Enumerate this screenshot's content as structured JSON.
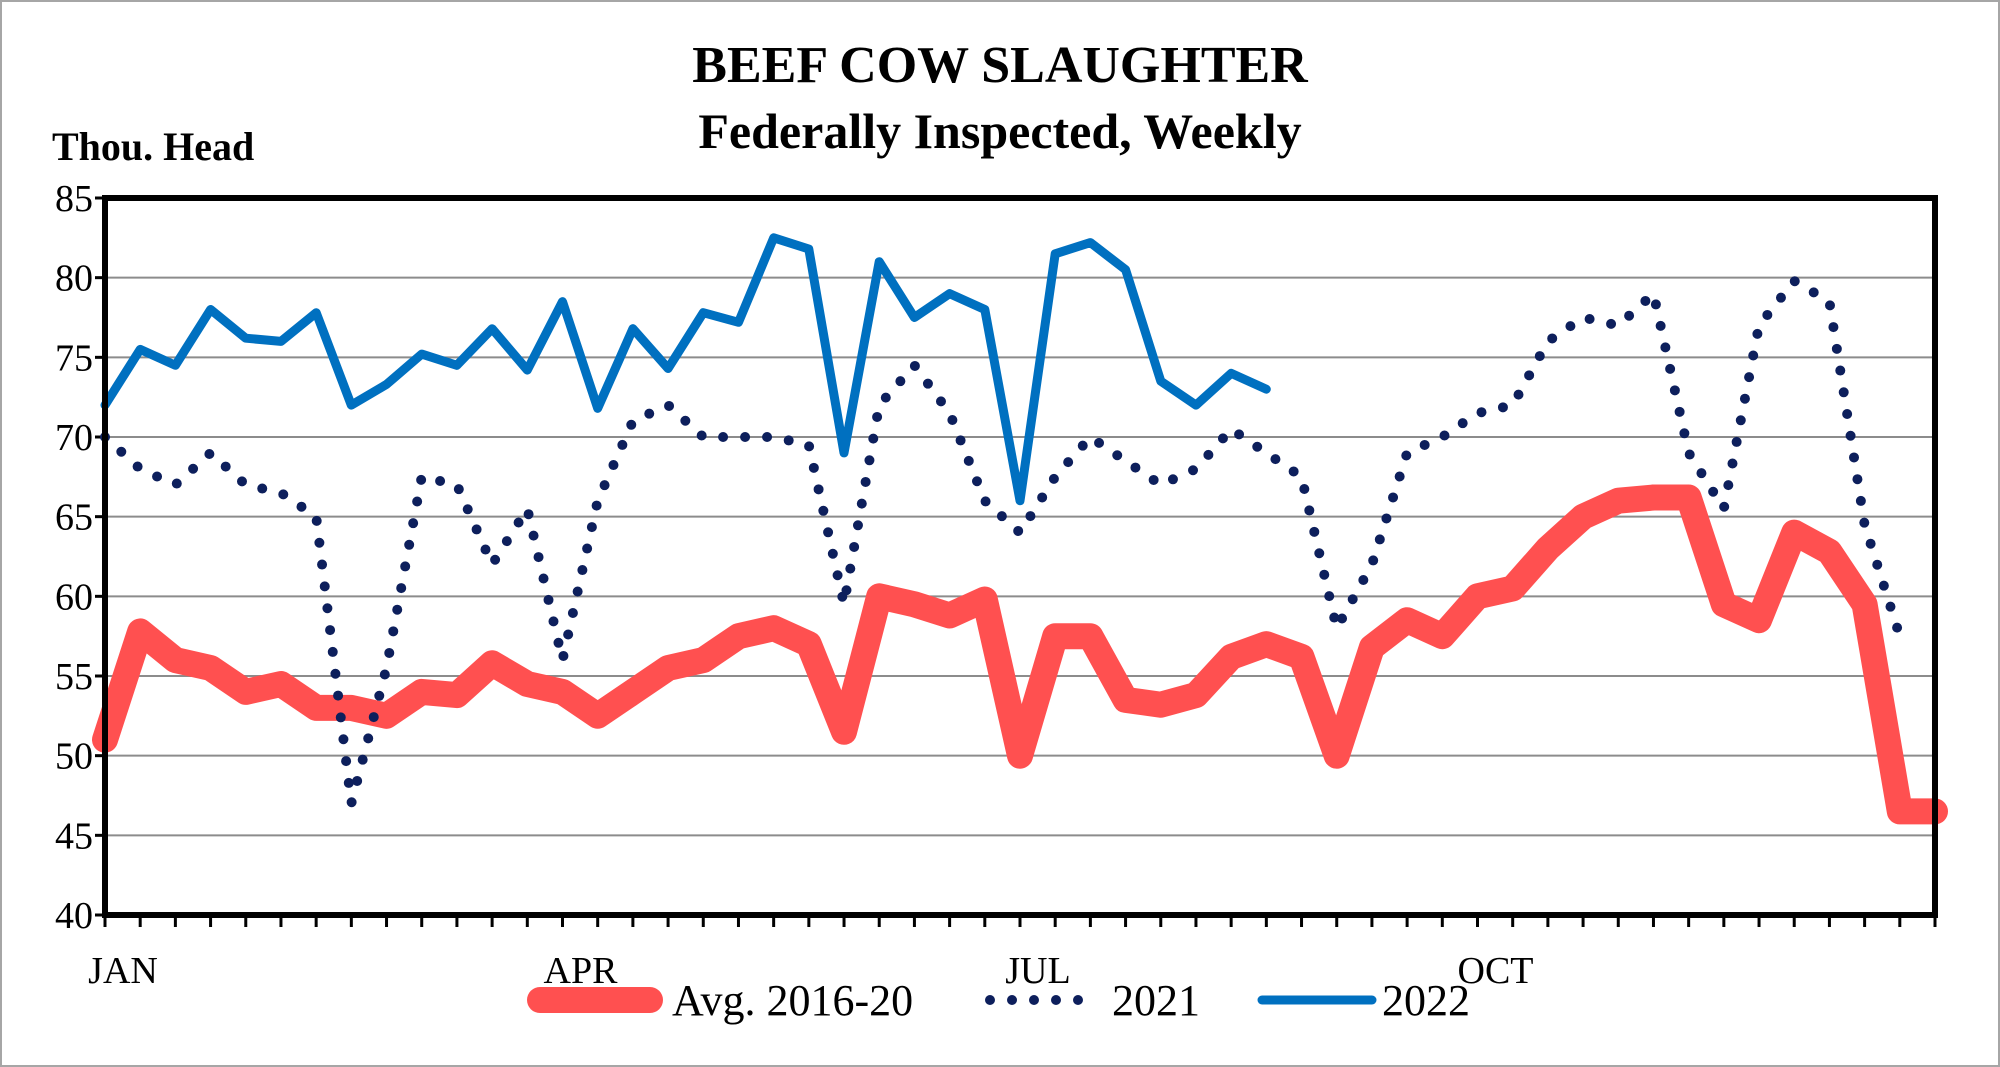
{
  "chart_data": {
    "type": "line",
    "title": "BEEF COW SLAUGHTER",
    "subtitle": "Federally Inspected, Weekly",
    "ylabel": "Thou. Head",
    "xlabel": "",
    "ylim": [
      40,
      85
    ],
    "yticks": [
      40,
      45,
      50,
      55,
      60,
      65,
      70,
      75,
      80,
      85
    ],
    "xlim": [
      1,
      53
    ],
    "x_month_labels": [
      {
        "label": "JAN",
        "week": 1
      },
      {
        "label": "APR",
        "week": 14
      },
      {
        "label": "JUL",
        "week": 27
      },
      {
        "label": "OCT",
        "week": 40
      }
    ],
    "grid": true,
    "legend_position": "bottom",
    "series": [
      {
        "name": "Avg. 2016-20",
        "color": "#ff5050",
        "style": "thick-solid",
        "x": [
          1,
          2,
          3,
          4,
          5,
          6,
          7,
          8,
          9,
          10,
          11,
          12,
          13,
          14,
          15,
          16,
          17,
          18,
          19,
          20,
          21,
          22,
          23,
          24,
          25,
          26,
          27,
          28,
          29,
          30,
          31,
          32,
          33,
          34,
          35,
          36,
          37,
          38,
          39,
          40,
          41,
          42,
          43,
          44,
          45,
          46,
          47,
          48,
          49,
          50,
          51,
          52,
          53
        ],
        "y": [
          51.0,
          57.8,
          56.0,
          55.5,
          54.0,
          54.5,
          53.0,
          53.0,
          52.5,
          54.0,
          53.8,
          55.8,
          54.5,
          54.0,
          52.5,
          54.0,
          55.5,
          56.0,
          57.5,
          58.0,
          57.0,
          51.5,
          60.0,
          59.5,
          58.8,
          59.8,
          50.0,
          57.5,
          57.5,
          53.5,
          53.2,
          53.8,
          56.2,
          57.0,
          56.2,
          50.0,
          56.8,
          58.5,
          57.5,
          60.0,
          60.5,
          63.0,
          65.0,
          66.0,
          66.2,
          66.2,
          59.5,
          58.5,
          64.0,
          62.8,
          59.5,
          46.5,
          46.5
        ]
      },
      {
        "name": "2021",
        "color": "#0d1f5c",
        "style": "round-dots",
        "x": [
          1,
          2,
          3,
          4,
          5,
          6,
          7,
          8,
          9,
          10,
          11,
          12,
          13,
          14,
          15,
          16,
          17,
          18,
          19,
          20,
          21,
          22,
          23,
          24,
          25,
          26,
          27,
          28,
          29,
          30,
          31,
          32,
          33,
          34,
          35,
          36,
          37,
          38,
          39,
          40,
          41,
          42,
          43,
          44,
          45,
          46,
          47,
          48,
          49,
          50,
          51,
          52,
          53
        ],
        "y": [
          70.0,
          68.0,
          67.0,
          69.0,
          67.0,
          66.5,
          65.0,
          47.0,
          55.5,
          67.5,
          67.0,
          62.0,
          65.5,
          56.0,
          66.0,
          71.0,
          72.0,
          70.0,
          70.0,
          70.0,
          69.5,
          59.5,
          72.0,
          74.5,
          71.5,
          66.0,
          64.0,
          67.5,
          70.0,
          68.5,
          67.0,
          68.0,
          70.5,
          69.0,
          67.5,
          58.0,
          62.0,
          69.0,
          70.0,
          71.5,
          72.0,
          76.0,
          77.5,
          77.0,
          79.0,
          69.0,
          65.5,
          77.0,
          79.8,
          78.5,
          64.5,
          57.5,
          null
        ]
      },
      {
        "name": "2022",
        "color": "#0070c0",
        "style": "solid",
        "x": [
          1,
          2,
          3,
          4,
          5,
          6,
          7,
          8,
          9,
          10,
          11,
          12,
          13,
          14,
          15,
          16,
          17,
          18,
          19,
          20,
          21,
          22,
          23,
          24,
          25,
          26,
          27,
          28,
          29,
          30,
          31,
          32,
          33,
          34,
          35
        ],
        "y": [
          72.0,
          75.5,
          74.5,
          78.0,
          76.2,
          76.0,
          77.8,
          72.0,
          73.3,
          75.2,
          74.5,
          76.8,
          74.2,
          78.5,
          71.8,
          76.8,
          74.3,
          77.8,
          77.2,
          82.5,
          81.8,
          69.0,
          81.0,
          77.5,
          79.0,
          78.0,
          66.0,
          81.5,
          82.2,
          80.5,
          73.5,
          72.0,
          74.0,
          73.0,
          null
        ]
      }
    ]
  }
}
